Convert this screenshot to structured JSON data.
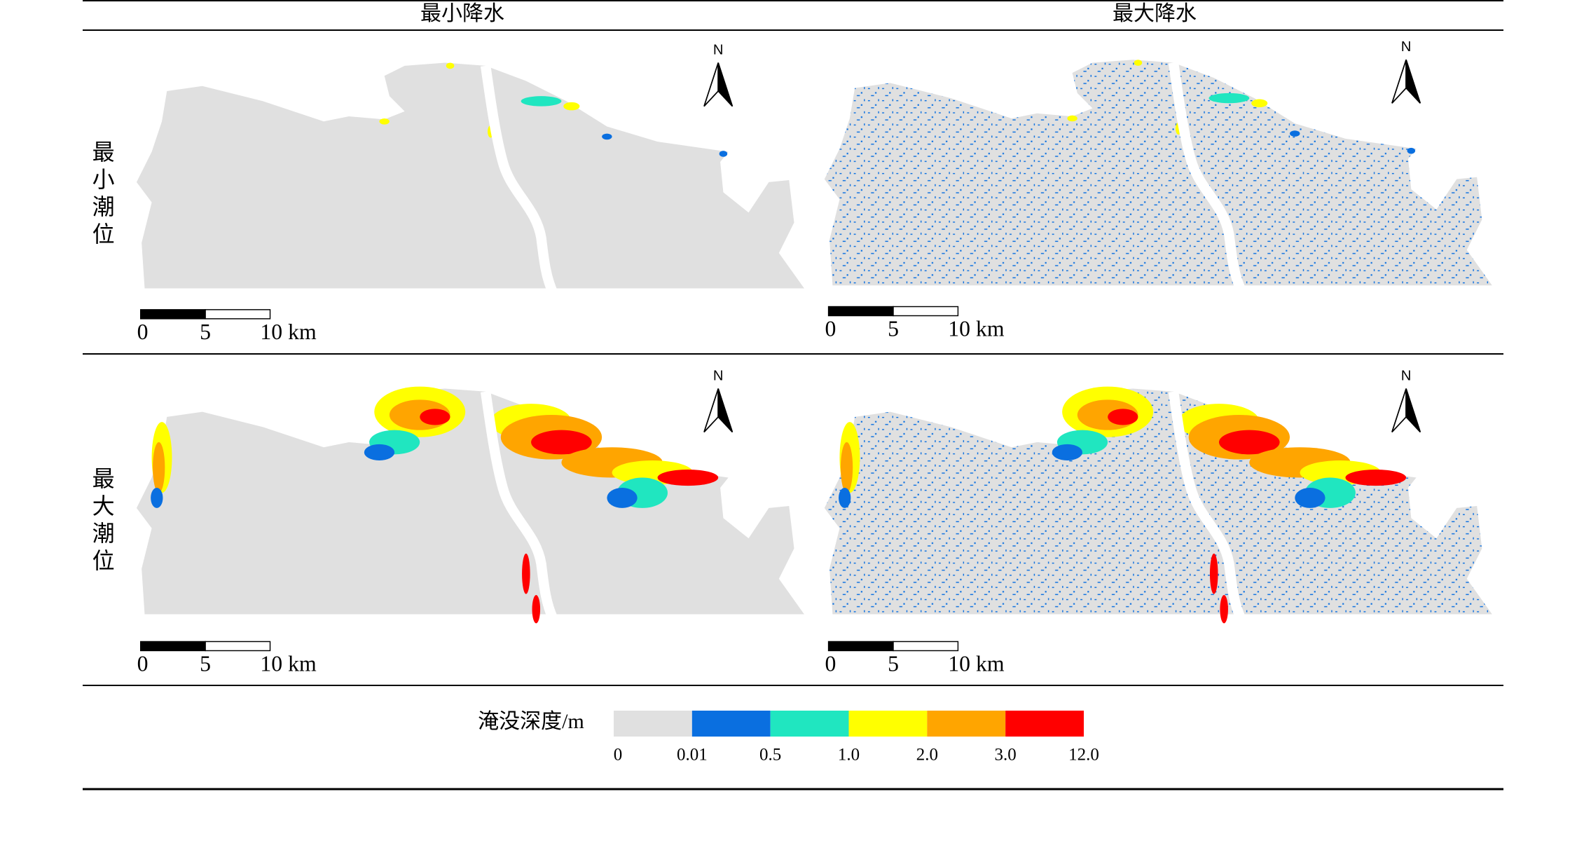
{
  "columns": [
    "最小降水",
    "最大降水"
  ],
  "rows": [
    "最小潮位",
    "最大潮位"
  ],
  "north": "N",
  "scale_bar": [
    "0",
    "5",
    "10 km"
  ],
  "legend": {
    "title": "淹没深度/m",
    "colors": [
      "#e0e0e0",
      "#0a6fe0",
      "#20e6c0",
      "#ffff00",
      "#ffa500",
      "#ff0000"
    ],
    "ticks": [
      "0",
      "0.01",
      "0.5",
      "1.0",
      "2.0",
      "3.0",
      "12.0"
    ]
  }
}
